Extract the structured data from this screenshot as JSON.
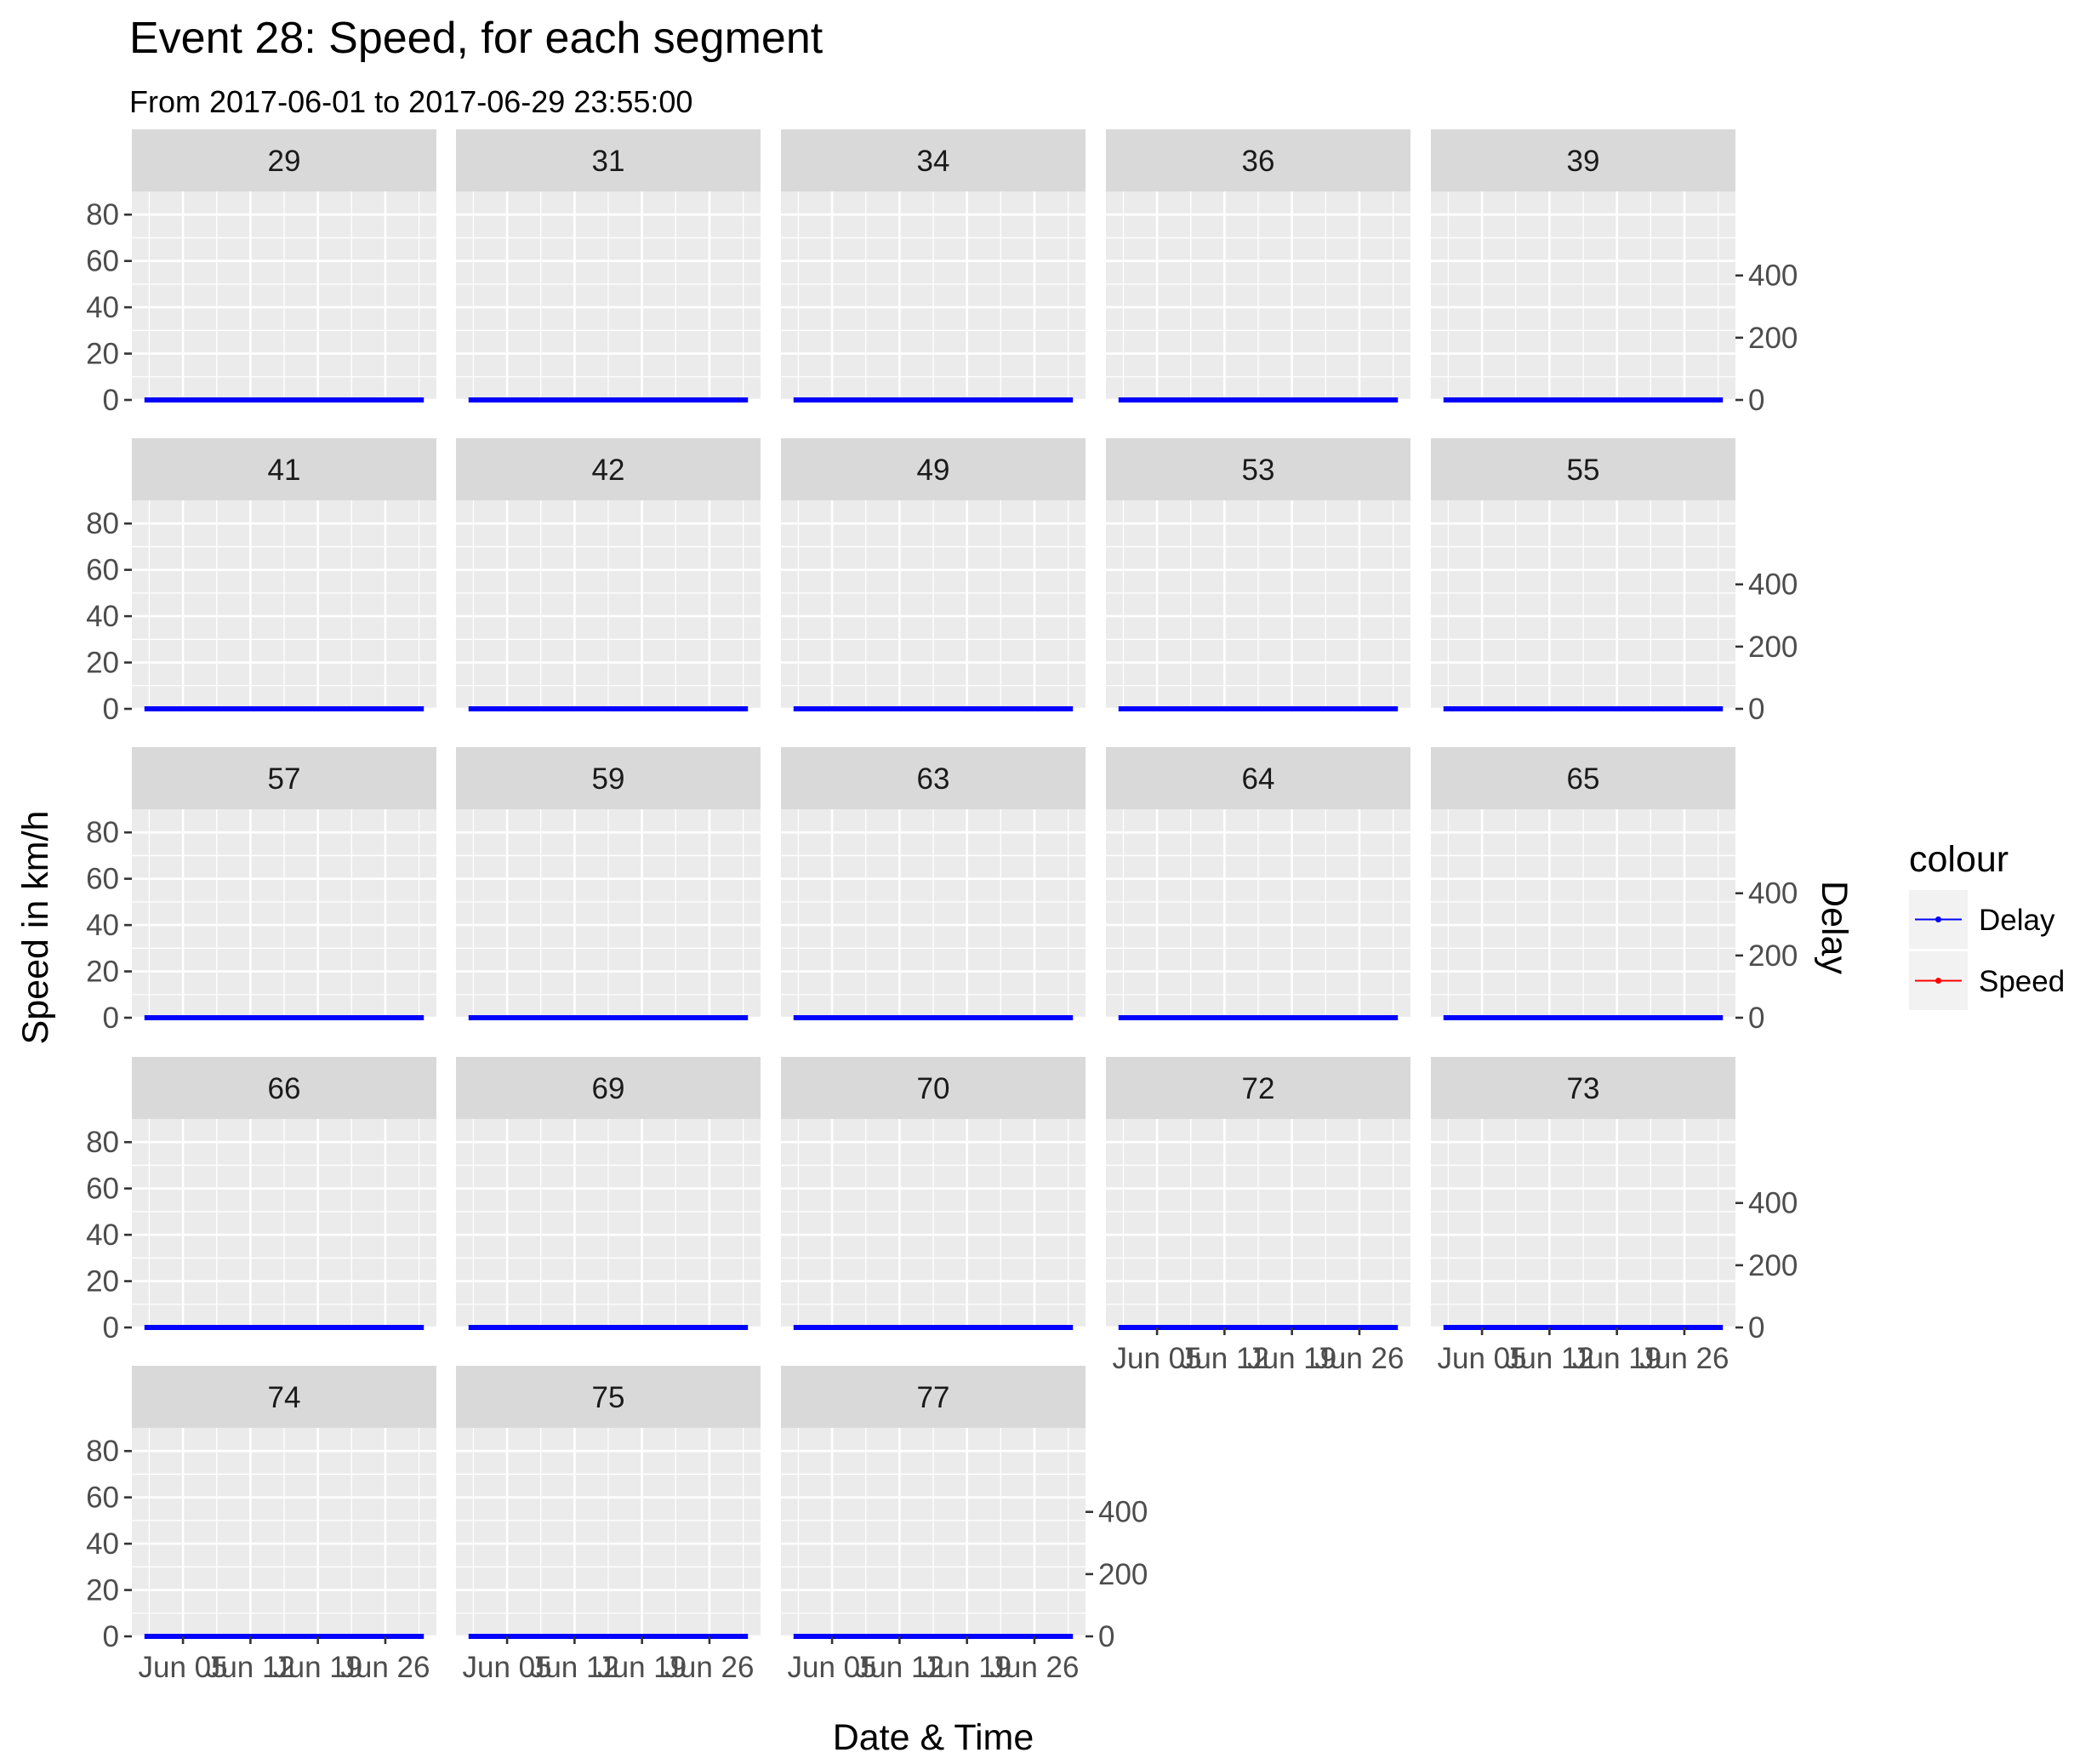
{
  "chart_data": {
    "type": "line",
    "title": "Event 28: Speed, for each segment",
    "subtitle": "From 2017-06-01 to 2017-06-29 23:55:00",
    "xlabel": "Date & Time",
    "ylabel": "Speed in km/h",
    "y2label": "Delay",
    "xlim": [
      "2017-06-01",
      "2017-06-29 23:55:00"
    ],
    "ylim": [
      0,
      90
    ],
    "y2lim": [
      0,
      670
    ],
    "x_ticks": [
      "Jun 05",
      "Jun 12",
      "Jun 19",
      "Jun 26"
    ],
    "y_ticks": [
      "0",
      "20",
      "40",
      "60",
      "80"
    ],
    "y2_ticks": [
      "0",
      "200",
      "400"
    ],
    "grid": true,
    "legend": {
      "title": "colour",
      "position": "right",
      "entries": [
        {
          "label": "Delay",
          "color": "#0000ff"
        },
        {
          "label": "Speed",
          "color": "#ff0000"
        }
      ]
    },
    "facets": [
      "29",
      "31",
      "34",
      "36",
      "39",
      "41",
      "42",
      "49",
      "53",
      "55",
      "57",
      "59",
      "63",
      "64",
      "65",
      "66",
      "69",
      "70",
      "72",
      "73",
      "74",
      "75",
      "77"
    ],
    "series": [
      {
        "name": "Delay",
        "color": "#0000ff",
        "x": [
          "2017-06-01",
          "2017-06-29 23:55:00"
        ],
        "y": [
          0,
          0
        ]
      },
      {
        "name": "Speed",
        "color": "#ff0000",
        "x": [],
        "y": []
      }
    ]
  }
}
